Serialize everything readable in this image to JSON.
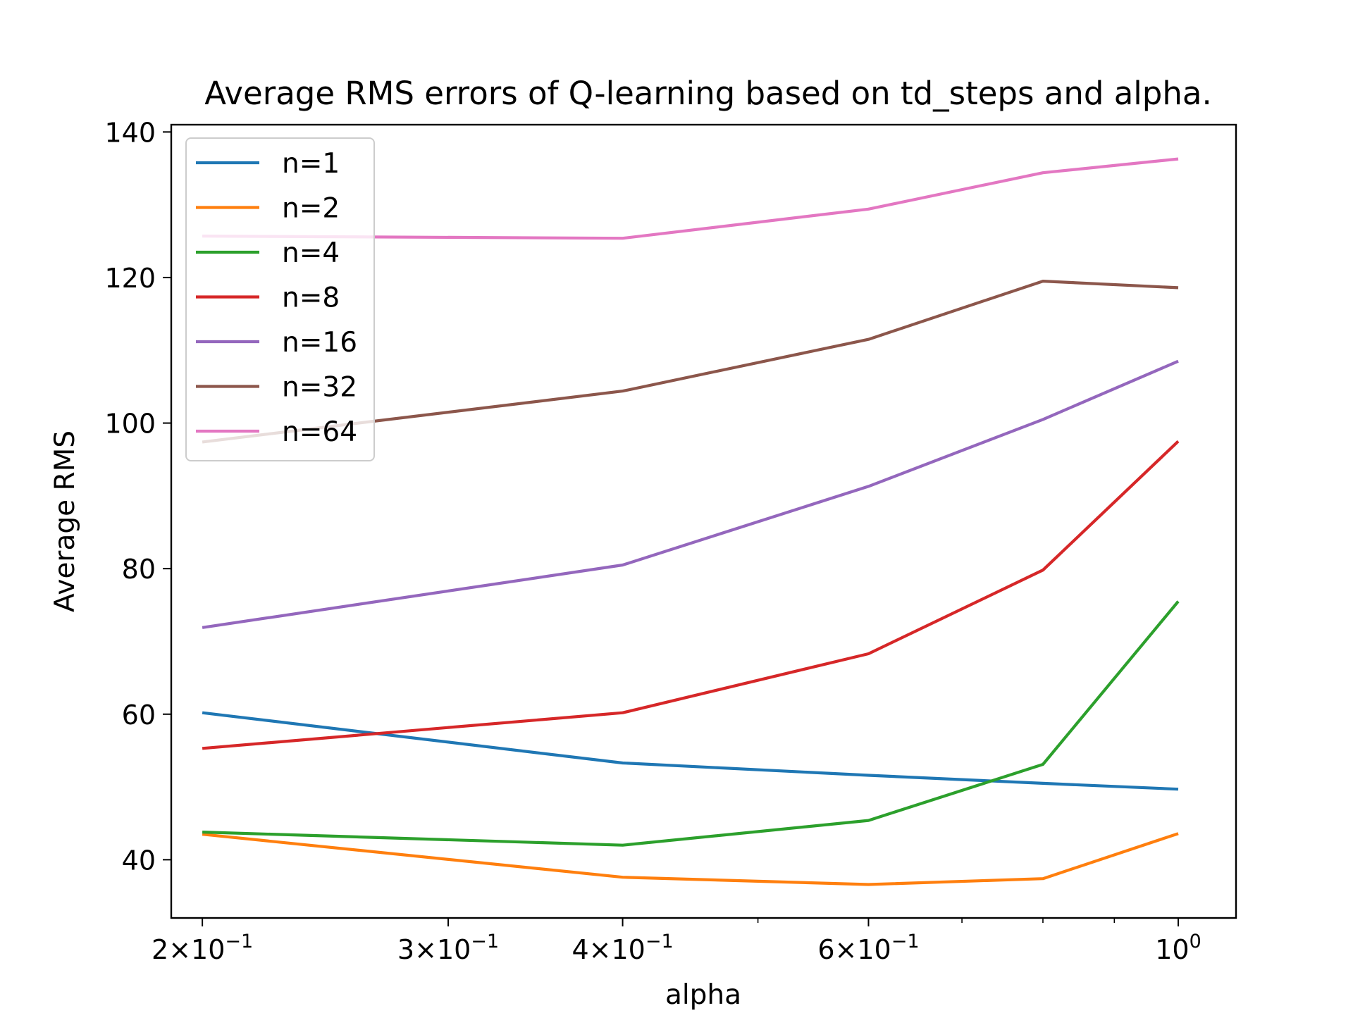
{
  "chart_data": {
    "type": "line",
    "title": "Average RMS errors of Q-learning based on td_steps and alpha.",
    "xlabel": "alpha",
    "ylabel": "Average RMS",
    "xscale": "log",
    "xlim": [
      0.19,
      1.1
    ],
    "ylim": [
      32,
      141
    ],
    "grid": false,
    "legend_position": "top-left",
    "x": [
      0.2,
      0.4,
      0.6,
      0.8,
      1.0
    ],
    "xticks": [
      {
        "value": 0.2,
        "base": "2×10",
        "exp": "−1"
      },
      {
        "value": 0.3,
        "base": "3×10",
        "exp": "−1"
      },
      {
        "value": 0.4,
        "base": "4×10",
        "exp": "−1"
      },
      {
        "value": 0.6,
        "base": "6×10",
        "exp": "−1"
      },
      {
        "value": 1.0,
        "base": "10",
        "exp": "0"
      }
    ],
    "minor_xticks": [
      0.5,
      0.7,
      0.8,
      0.9
    ],
    "yticks": [
      40,
      60,
      80,
      100,
      120,
      140
    ],
    "series": [
      {
        "name": "n=1",
        "color": "#1f77b4",
        "values": [
          60.2,
          53.3,
          51.6,
          50.5,
          49.7
        ]
      },
      {
        "name": "n=2",
        "color": "#ff7f0e",
        "values": [
          43.5,
          37.6,
          36.6,
          37.4,
          43.6
        ]
      },
      {
        "name": "n=4",
        "color": "#2ca02c",
        "values": [
          43.8,
          42.0,
          45.4,
          53.1,
          75.5
        ]
      },
      {
        "name": "n=8",
        "color": "#d62728",
        "values": [
          55.3,
          60.2,
          68.3,
          79.8,
          97.5
        ]
      },
      {
        "name": "n=16",
        "color": "#9467bd",
        "values": [
          71.9,
          80.5,
          91.3,
          100.5,
          108.5
        ]
      },
      {
        "name": "n=32",
        "color": "#8c564b",
        "values": [
          97.4,
          104.4,
          111.5,
          119.5,
          118.6
        ]
      },
      {
        "name": "n=64",
        "color": "#e377c2",
        "values": [
          125.7,
          125.4,
          129.4,
          134.4,
          136.3
        ]
      }
    ]
  }
}
